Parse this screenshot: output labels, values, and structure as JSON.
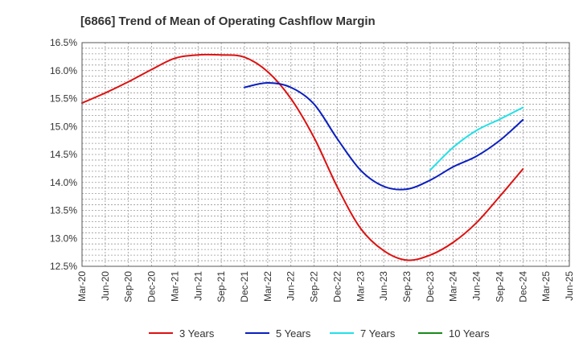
{
  "chart_data": {
    "type": "line",
    "title": "[6866]  Trend of Mean of Operating Cashflow Margin",
    "xlabel": "",
    "ylabel": "",
    "x": [
      "Mar-20",
      "Jun-20",
      "Sep-20",
      "Dec-20",
      "Mar-21",
      "Jun-21",
      "Sep-21",
      "Dec-21",
      "Mar-22",
      "Jun-22",
      "Sep-22",
      "Dec-22",
      "Mar-23",
      "Jun-23",
      "Sep-23",
      "Dec-23",
      "Mar-24",
      "Jun-24",
      "Sep-24",
      "Dec-24",
      "Mar-25",
      "Jun-25"
    ],
    "ylim": [
      12.5,
      16.5
    ],
    "yticks": [
      12.5,
      13.0,
      13.5,
      14.0,
      14.5,
      15.0,
      15.5,
      16.0,
      16.5
    ],
    "ytick_labels": [
      "12.5%",
      "13.0%",
      "13.5%",
      "14.0%",
      "14.5%",
      "15.0%",
      "15.5%",
      "16.0%",
      "16.5%"
    ],
    "grid": true,
    "legend_position": "bottom",
    "series": [
      {
        "name": "3 Years",
        "color": "#dd1111",
        "values": [
          15.42,
          15.6,
          15.8,
          16.02,
          16.22,
          16.28,
          16.28,
          16.24,
          15.98,
          15.5,
          14.8,
          13.92,
          13.18,
          12.78,
          12.61,
          12.7,
          12.93,
          13.28,
          13.75,
          14.24,
          null,
          null
        ]
      },
      {
        "name": "5 Years",
        "color": "#0a1fbf",
        "values": [
          null,
          null,
          null,
          null,
          null,
          null,
          null,
          15.7,
          15.78,
          15.7,
          15.4,
          14.78,
          14.22,
          13.93,
          13.88,
          14.04,
          14.28,
          14.47,
          14.75,
          15.12,
          null,
          null
        ]
      },
      {
        "name": "7 Years",
        "color": "#22e0e8",
        "values": [
          null,
          null,
          null,
          null,
          null,
          null,
          null,
          null,
          null,
          null,
          null,
          null,
          null,
          null,
          null,
          14.22,
          14.63,
          14.93,
          15.13,
          15.34,
          null,
          null
        ]
      },
      {
        "name": "10 Years",
        "color": "#1a8a1a",
        "values": [
          null,
          null,
          null,
          null,
          null,
          null,
          null,
          null,
          null,
          null,
          null,
          null,
          null,
          null,
          null,
          null,
          null,
          null,
          null,
          null,
          null,
          null
        ]
      }
    ]
  }
}
